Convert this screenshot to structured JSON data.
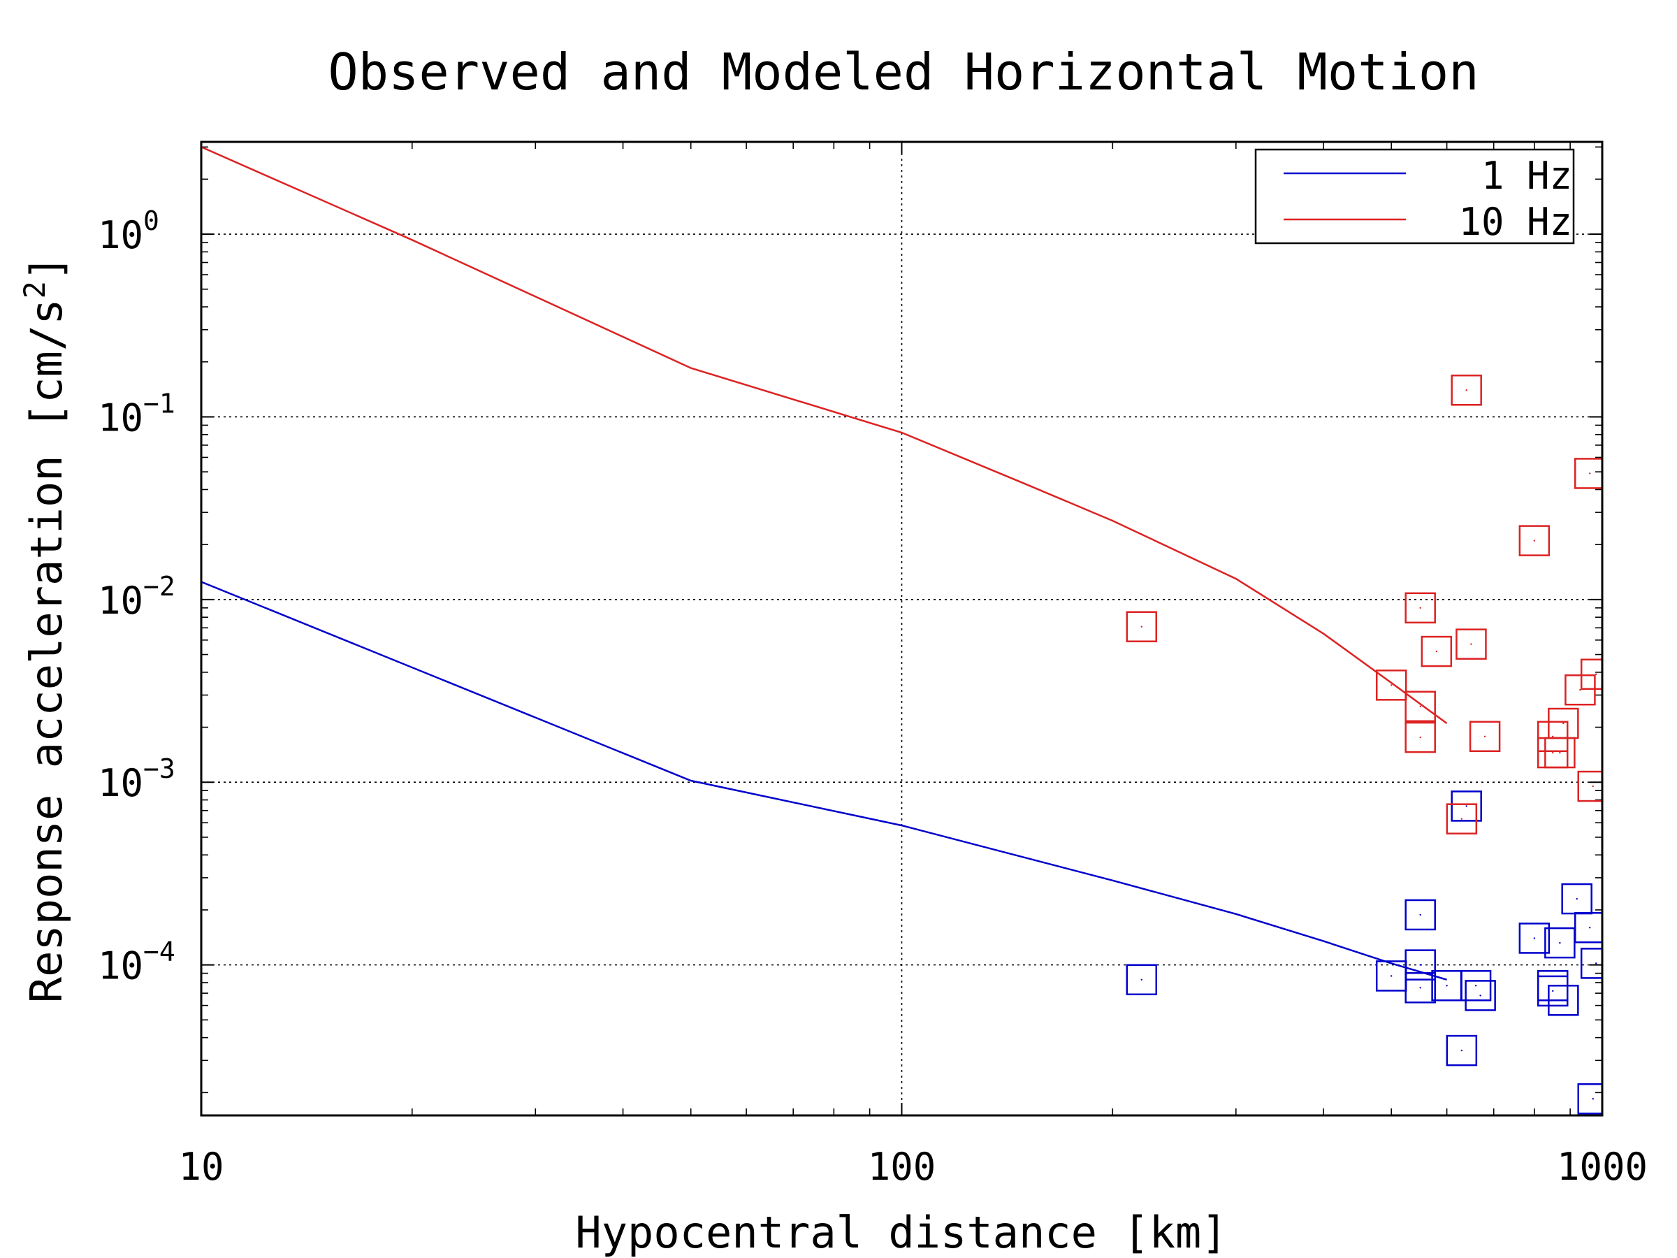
{
  "chart_data": {
    "type": "scatter",
    "title": "Observed and Modeled Horizontal Motion",
    "xlabel": "Hypocentral distance [km]",
    "ylabel_main": "Response acceleration [cm/s",
    "ylabel_sup": "2",
    "ylabel_close": "]",
    "x_scale": "log",
    "y_scale": "log",
    "xlim": [
      10,
      1000
    ],
    "ylim": [
      1.5e-05,
      3.2
    ],
    "grid": true,
    "legend_position": "top-right",
    "x_ticks": [
      {
        "value": 10,
        "label": "10"
      },
      {
        "value": 100,
        "label": "100"
      },
      {
        "value": 1000,
        "label": "1000"
      }
    ],
    "y_ticks": [
      {
        "value": 1,
        "base": "10",
        "exp": "0"
      },
      {
        "value": 0.1,
        "base": "10",
        "exp": "−1"
      },
      {
        "value": 0.01,
        "base": "10",
        "exp": "−2"
      },
      {
        "value": 0.001,
        "base": "10",
        "exp": "−3"
      },
      {
        "value": 0.0001,
        "base": "10",
        "exp": "−4"
      }
    ],
    "series": [
      {
        "name": "1 Hz",
        "color": "#0000cc",
        "line": [
          [
            10,
            0.0125
          ],
          [
            50,
            0.00102
          ],
          [
            100,
            0.00058
          ],
          [
            200,
            0.00029
          ],
          [
            300,
            0.00019
          ],
          [
            400,
            0.000135
          ],
          [
            500,
            0.000102
          ],
          [
            600,
            8.3e-05
          ]
        ],
        "points": [
          [
            220,
            8.3e-05
          ],
          [
            500,
            8.7e-05
          ],
          [
            550,
            0.0001
          ],
          [
            550,
            0.000188
          ],
          [
            550,
            7.5e-05
          ],
          [
            600,
            7.7e-05
          ],
          [
            630,
            3.4e-05
          ],
          [
            640,
            0.00074
          ],
          [
            660,
            7.7e-05
          ],
          [
            670,
            6.8e-05
          ],
          [
            800,
            0.00014
          ],
          [
            850,
            7.7e-05
          ],
          [
            850,
            7.2e-05
          ],
          [
            870,
            0.000132
          ],
          [
            880,
            6.4e-05
          ],
          [
            920,
            0.00023
          ],
          [
            960,
            0.00016
          ],
          [
            980,
            0.000102
          ],
          [
            970,
            1.85e-05
          ]
        ]
      },
      {
        "name": "10 Hz",
        "color": "#dd2222",
        "line": [
          [
            10,
            3.0
          ],
          [
            20,
            0.93
          ],
          [
            50,
            0.185
          ],
          [
            100,
            0.082
          ],
          [
            150,
            0.043
          ],
          [
            200,
            0.027
          ],
          [
            300,
            0.013
          ],
          [
            400,
            0.0065
          ],
          [
            500,
            0.0035
          ],
          [
            600,
            0.0021
          ]
        ],
        "points": [
          [
            220,
            0.0071
          ],
          [
            500,
            0.0034
          ],
          [
            550,
            0.009
          ],
          [
            550,
            0.0026
          ],
          [
            550,
            0.00176
          ],
          [
            580,
            0.0052
          ],
          [
            630,
            0.00063
          ],
          [
            640,
            0.14
          ],
          [
            650,
            0.0057
          ],
          [
            680,
            0.00178
          ],
          [
            800,
            0.021
          ],
          [
            850,
            0.00178
          ],
          [
            850,
            0.00145
          ],
          [
            870,
            0.00145
          ],
          [
            880,
            0.0021
          ],
          [
            930,
            0.0032
          ],
          [
            960,
            0.049
          ],
          [
            980,
            0.0039
          ],
          [
            970,
            0.00095
          ]
        ]
      }
    ]
  }
}
